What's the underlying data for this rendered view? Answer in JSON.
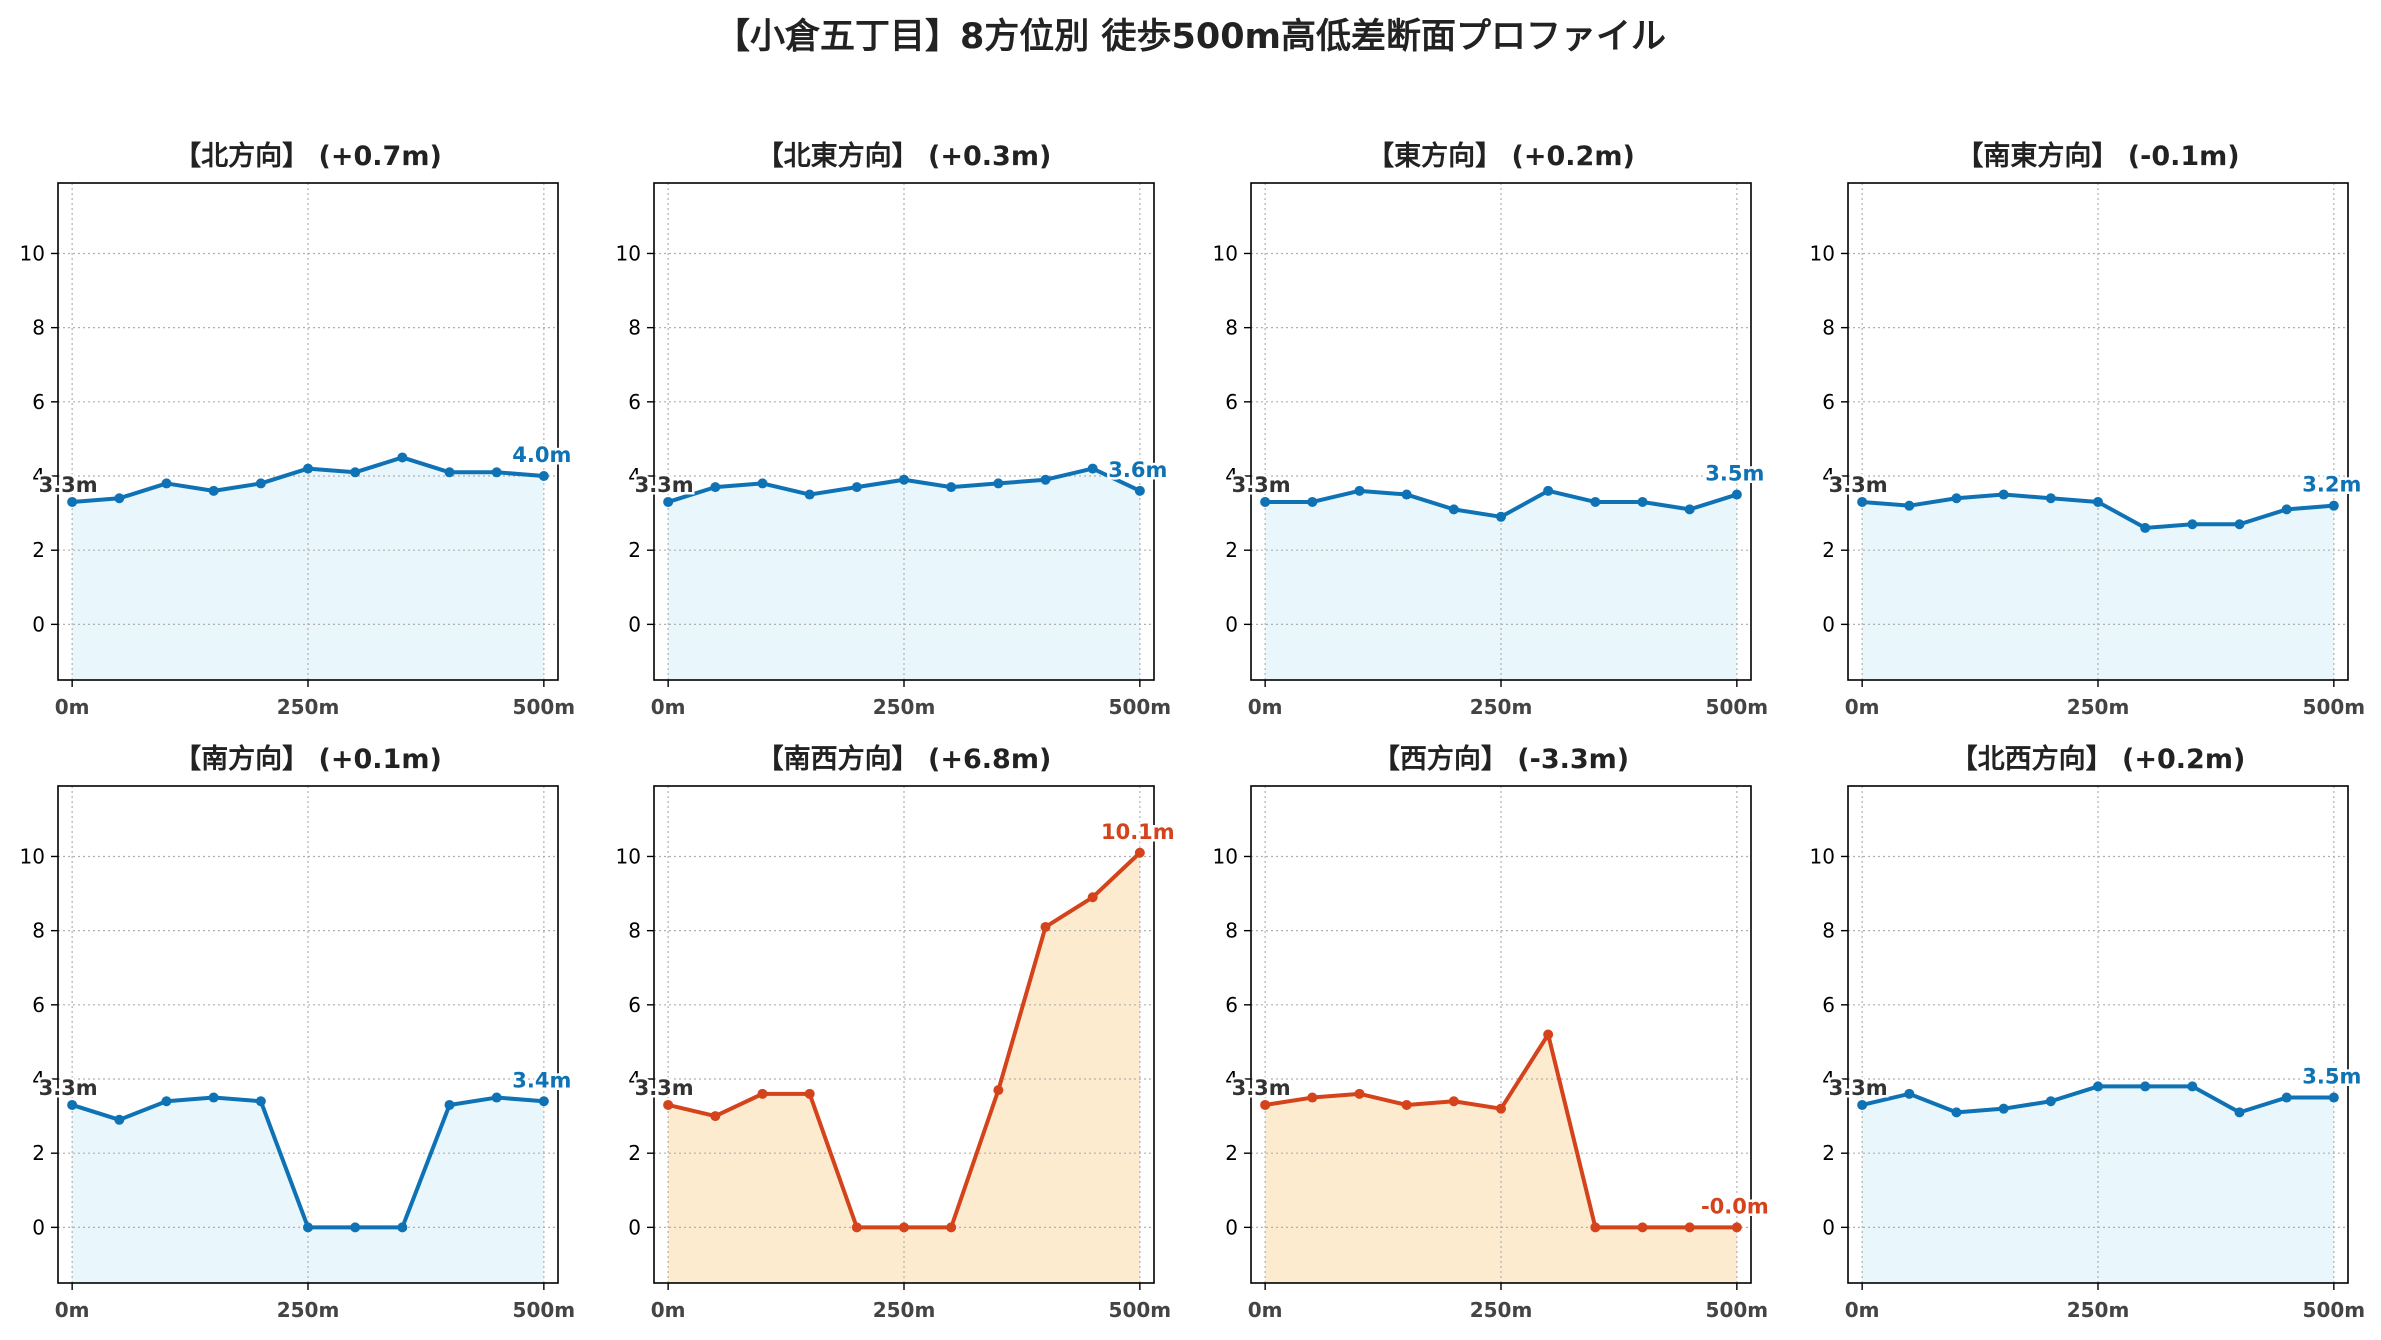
{
  "figure": {
    "title": "【小倉五丁目】8方位別 徒歩500m高低差断面プロファイル"
  },
  "colors": {
    "flat_line": "#0e72b5",
    "flat_fill": "#e9f6fb",
    "steep_line": "#d4431b",
    "steep_fill": "#fdebcf",
    "start_label": "#333333"
  },
  "chart_data": [
    {
      "type": "area",
      "title": "【北方向】 (+0.7m)",
      "x": [
        0,
        50,
        100,
        150,
        200,
        250,
        300,
        350,
        400,
        450,
        500
      ],
      "y": [
        3.3,
        3.4,
        3.8,
        3.6,
        3.8,
        4.2,
        4.1,
        4.5,
        4.1,
        4.1,
        4.0
      ],
      "start_label": "3.3m",
      "end_label": "4.0m",
      "style": "flat",
      "xticks": [
        "0m",
        "250m",
        "500m"
      ],
      "yticks": [
        "0",
        "2",
        "4",
        "6",
        "8",
        "10"
      ],
      "ylim": [
        -1.5,
        11.9
      ],
      "xlim": [
        -15,
        515
      ],
      "grid": true
    },
    {
      "type": "area",
      "title": "【北東方向】 (+0.3m)",
      "x": [
        0,
        50,
        100,
        150,
        200,
        250,
        300,
        350,
        400,
        450,
        500
      ],
      "y": [
        3.3,
        3.7,
        3.8,
        3.5,
        3.7,
        3.9,
        3.7,
        3.8,
        3.9,
        4.2,
        3.6
      ],
      "start_label": "3.3m",
      "end_label": "3.6m",
      "style": "flat",
      "xticks": [
        "0m",
        "250m",
        "500m"
      ],
      "yticks": [
        "0",
        "2",
        "4",
        "6",
        "8",
        "10"
      ],
      "ylim": [
        -1.5,
        11.9
      ],
      "xlim": [
        -15,
        515
      ],
      "grid": true
    },
    {
      "type": "area",
      "title": "【東方向】 (+0.2m)",
      "x": [
        0,
        50,
        100,
        150,
        200,
        250,
        300,
        350,
        400,
        450,
        500
      ],
      "y": [
        3.3,
        3.3,
        3.6,
        3.5,
        3.1,
        2.9,
        3.6,
        3.3,
        3.3,
        3.1,
        3.5
      ],
      "start_label": "3.3m",
      "end_label": "3.5m",
      "style": "flat",
      "xticks": [
        "0m",
        "250m",
        "500m"
      ],
      "yticks": [
        "0",
        "2",
        "4",
        "6",
        "8",
        "10"
      ],
      "ylim": [
        -1.5,
        11.9
      ],
      "xlim": [
        -15,
        515
      ],
      "grid": true
    },
    {
      "type": "area",
      "title": "【南東方向】 (-0.1m)",
      "x": [
        0,
        50,
        100,
        150,
        200,
        250,
        300,
        350,
        400,
        450,
        500
      ],
      "y": [
        3.3,
        3.2,
        3.4,
        3.5,
        3.4,
        3.3,
        2.6,
        2.7,
        2.7,
        3.1,
        3.2
      ],
      "start_label": "3.3m",
      "end_label": "3.2m",
      "style": "flat",
      "xticks": [
        "0m",
        "250m",
        "500m"
      ],
      "yticks": [
        "0",
        "2",
        "4",
        "6",
        "8",
        "10"
      ],
      "ylim": [
        -1.5,
        11.9
      ],
      "xlim": [
        -15,
        515
      ],
      "grid": true
    },
    {
      "type": "area",
      "title": "【南方向】 (+0.1m)",
      "x": [
        0,
        50,
        100,
        150,
        200,
        250,
        300,
        350,
        400,
        450,
        500
      ],
      "y": [
        3.3,
        2.9,
        3.4,
        3.5,
        3.4,
        0.0,
        0.0,
        0.0,
        3.3,
        3.5,
        3.4
      ],
      "start_label": "3.3m",
      "end_label": "3.4m",
      "style": "flat",
      "xticks": [
        "0m",
        "250m",
        "500m"
      ],
      "yticks": [
        "0",
        "2",
        "4",
        "6",
        "8",
        "10"
      ],
      "ylim": [
        -1.5,
        11.9
      ],
      "xlim": [
        -15,
        515
      ],
      "grid": true
    },
    {
      "type": "area",
      "title": "【南西方向】 (+6.8m)",
      "x": [
        0,
        50,
        100,
        150,
        200,
        250,
        300,
        350,
        400,
        450,
        500
      ],
      "y": [
        3.3,
        3.0,
        3.6,
        3.6,
        0.0,
        0.0,
        0.0,
        3.7,
        8.1,
        8.9,
        10.1
      ],
      "start_label": "3.3m",
      "end_label": "10.1m",
      "style": "steep",
      "xticks": [
        "0m",
        "250m",
        "500m"
      ],
      "yticks": [
        "0",
        "2",
        "4",
        "6",
        "8",
        "10"
      ],
      "ylim": [
        -1.5,
        11.9
      ],
      "xlim": [
        -15,
        515
      ],
      "grid": true
    },
    {
      "type": "area",
      "title": "【西方向】 (-3.3m)",
      "x": [
        0,
        50,
        100,
        150,
        200,
        250,
        300,
        350,
        400,
        450,
        500
      ],
      "y": [
        3.3,
        3.5,
        3.6,
        3.3,
        3.4,
        3.2,
        5.2,
        0.0,
        0.0,
        0.0,
        0.0
      ],
      "start_label": "3.3m",
      "end_label": "-0.0m",
      "style": "steep",
      "xticks": [
        "0m",
        "250m",
        "500m"
      ],
      "yticks": [
        "0",
        "2",
        "4",
        "6",
        "8",
        "10"
      ],
      "ylim": [
        -1.5,
        11.9
      ],
      "xlim": [
        -15,
        515
      ],
      "grid": true
    },
    {
      "type": "area",
      "title": "【北西方向】 (+0.2m)",
      "x": [
        0,
        50,
        100,
        150,
        200,
        250,
        300,
        350,
        400,
        450,
        500
      ],
      "y": [
        3.3,
        3.6,
        3.1,
        3.2,
        3.4,
        3.8,
        3.8,
        3.8,
        3.1,
        3.5,
        3.5
      ],
      "start_label": "3.3m",
      "end_label": "3.5m",
      "style": "flat",
      "xticks": [
        "0m",
        "250m",
        "500m"
      ],
      "yticks": [
        "0",
        "2",
        "4",
        "6",
        "8",
        "10"
      ],
      "ylim": [
        -1.5,
        11.9
      ],
      "xlim": [
        -15,
        515
      ],
      "grid": true
    }
  ]
}
